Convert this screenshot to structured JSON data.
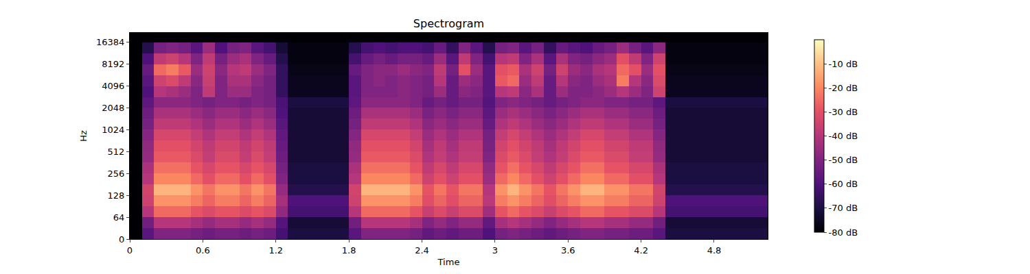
{
  "chart_data": {
    "type": "heatmap",
    "title": "Spectrogram",
    "xlabel": "Time",
    "ylabel": "Hz",
    "xlim": [
      0,
      5.24
    ],
    "ylim": [
      0,
      22050
    ],
    "xticks": [
      0,
      0.6,
      1.2,
      1.8,
      2.4,
      3,
      3.6,
      4.2,
      4.8
    ],
    "yticks": [
      0,
      64,
      128,
      256,
      512,
      1024,
      2048,
      4096,
      8192,
      16384
    ],
    "x_edges": [
      0,
      0.1,
      0.2,
      0.3,
      0.4,
      0.5,
      0.6,
      0.7,
      0.8,
      0.9,
      1.0,
      1.1,
      1.2,
      1.3,
      1.4,
      1.5,
      1.6,
      1.7,
      1.8,
      1.9,
      2.0,
      2.1,
      2.2,
      2.3,
      2.4,
      2.5,
      2.6,
      2.7,
      2.8,
      2.9,
      3.0,
      3.1,
      3.2,
      3.3,
      3.4,
      3.5,
      3.6,
      3.7,
      3.8,
      3.9,
      4.0,
      4.1,
      4.2,
      4.3,
      4.4,
      4.5,
      4.6,
      4.7,
      4.8,
      4.9,
      5.0,
      5.1,
      5.2,
      5.24
    ],
    "y_edges": [
      0,
      32,
      64,
      90.5,
      128,
      181,
      256,
      362,
      512,
      724,
      1024,
      1448,
      2048,
      2896,
      4096,
      5793,
      8192,
      11585,
      16384,
      22050
    ],
    "z": [
      [
        -80,
        -58,
        -50,
        -50,
        -50,
        -52,
        -54,
        -52,
        -52,
        -54,
        -52,
        -54,
        -62,
        -70,
        -70,
        -70,
        -70,
        -70,
        -58,
        -50,
        -50,
        -50,
        -50,
        -52,
        -56,
        -54,
        -56,
        -54,
        -54,
        -60,
        -52,
        -50,
        -52,
        -54,
        -56,
        -54,
        -52,
        -50,
        -50,
        -52,
        -52,
        -54,
        -54,
        -58,
        -70,
        -70,
        -70,
        -70,
        -70,
        -70,
        -70,
        -70,
        -70
      ],
      [
        -80,
        -53,
        -40,
        -40,
        -40,
        -43,
        -46,
        -43,
        -43,
        -46,
        -43,
        -46,
        -59,
        -72,
        -72,
        -72,
        -72,
        -72,
        -53,
        -40,
        -40,
        -40,
        -40,
        -43,
        -50,
        -46,
        -50,
        -46,
        -46,
        -56,
        -43,
        -40,
        -43,
        -46,
        -50,
        -46,
        -43,
        -40,
        -40,
        -43,
        -43,
        -46,
        -46,
        -53,
        -72,
        -72,
        -72,
        -72,
        -72,
        -72,
        -72,
        -72,
        -72
      ],
      [
        -80,
        -40,
        -25,
        -25,
        -25,
        -29,
        -32,
        -29,
        -29,
        -32,
        -29,
        -32,
        -47,
        -62,
        -62,
        -62,
        -62,
        -62,
        -40,
        -25,
        -25,
        -25,
        -25,
        -29,
        -36,
        -32,
        -36,
        -32,
        -32,
        -44,
        -29,
        -25,
        -29,
        -32,
        -36,
        -32,
        -29,
        -25,
        -25,
        -29,
        -29,
        -32,
        -32,
        -40,
        -62,
        -62,
        -62,
        -62,
        -62,
        -62,
        -62,
        -62,
        -62
      ],
      [
        -80,
        -35,
        -18,
        -18,
        -18,
        -22,
        -26,
        -22,
        -22,
        -26,
        -22,
        -26,
        -43,
        -60,
        -60,
        -60,
        -60,
        -60,
        -35,
        -18,
        -18,
        -18,
        -18,
        -22,
        -31,
        -26,
        -31,
        -26,
        -26,
        -39,
        -22,
        -18,
        -22,
        -26,
        -31,
        -26,
        -22,
        -18,
        -18,
        -22,
        -22,
        -26,
        -26,
        -35,
        -60,
        -60,
        -60,
        -60,
        -60,
        -60,
        -60,
        -60,
        -60
      ],
      [
        -80,
        -34,
        -12,
        -12,
        -12,
        -18,
        -23,
        -18,
        -18,
        -23,
        -18,
        -23,
        -46,
        -68,
        -68,
        -68,
        -68,
        -68,
        -34,
        -12,
        -12,
        -12,
        -12,
        -18,
        -29,
        -23,
        -29,
        -23,
        -23,
        -40,
        -18,
        -12,
        -18,
        -23,
        -29,
        -23,
        -18,
        -12,
        -12,
        -18,
        -18,
        -23,
        -23,
        -34,
        -68,
        -68,
        -68,
        -68,
        -68,
        -68,
        -68,
        -68,
        -68
      ],
      [
        -80,
        -40,
        -20,
        -20,
        -20,
        -25,
        -30,
        -25,
        -25,
        -30,
        -25,
        -30,
        -50,
        -70,
        -70,
        -70,
        -70,
        -70,
        -40,
        -20,
        -20,
        -20,
        -20,
        -25,
        -35,
        -30,
        -35,
        -30,
        -30,
        -45,
        -25,
        -20,
        -25,
        -30,
        -35,
        -30,
        -25,
        -20,
        -20,
        -25,
        -25,
        -30,
        -30,
        -40,
        -70,
        -70,
        -70,
        -70,
        -70,
        -70,
        -70,
        -70,
        -70
      ],
      [
        -80,
        -42,
        -24,
        -24,
        -24,
        -29,
        -33,
        -29,
        -29,
        -33,
        -29,
        -33,
        -52,
        -70,
        -70,
        -70,
        -70,
        -70,
        -42,
        -24,
        -24,
        -24,
        -24,
        -29,
        -38,
        -33,
        -38,
        -33,
        -33,
        -47,
        -29,
        -24,
        -29,
        -33,
        -38,
        -33,
        -29,
        -24,
        -24,
        -29,
        -29,
        -33,
        -33,
        -42,
        -70,
        -70,
        -70,
        -70,
        -70,
        -70,
        -70,
        -70,
        -70
      ],
      [
        -80,
        -46,
        -28,
        -28,
        -28,
        -32,
        -37,
        -32,
        -32,
        -37,
        -32,
        -37,
        -54,
        -72,
        -72,
        -72,
        -72,
        -72,
        -46,
        -28,
        -28,
        -28,
        -28,
        -32,
        -41,
        -37,
        -41,
        -37,
        -37,
        -50,
        -32,
        -28,
        -32,
        -37,
        -41,
        -37,
        -32,
        -28,
        -28,
        -32,
        -32,
        -37,
        -37,
        -46,
        -72,
        -72,
        -72,
        -72,
        -72,
        -72,
        -72,
        -72,
        -72
      ],
      [
        -80,
        -47,
        -30,
        -30,
        -30,
        -34,
        -38,
        -34,
        -34,
        -38,
        -34,
        -38,
        -55,
        -72,
        -72,
        -72,
        -72,
        -72,
        -47,
        -30,
        -30,
        -30,
        -30,
        -34,
        -43,
        -38,
        -43,
        -38,
        -38,
        -51,
        -34,
        -30,
        -34,
        -38,
        -43,
        -38,
        -34,
        -30,
        -30,
        -34,
        -34,
        -38,
        -38,
        -47,
        -72,
        -72,
        -72,
        -72,
        -72,
        -72,
        -72,
        -72,
        -72
      ],
      [
        -80,
        -49,
        -33,
        -33,
        -33,
        -37,
        -41,
        -37,
        -37,
        -41,
        -37,
        -41,
        -56,
        -72,
        -72,
        -72,
        -72,
        -72,
        -49,
        -33,
        -33,
        -33,
        -33,
        -37,
        -45,
        -41,
        -45,
        -41,
        -41,
        -52,
        -37,
        -33,
        -37,
        -41,
        -45,
        -41,
        -37,
        -33,
        -33,
        -37,
        -37,
        -41,
        -41,
        -49,
        -72,
        -72,
        -72,
        -72,
        -72,
        -72,
        -72,
        -72,
        -72
      ],
      [
        -80,
        -52,
        -38,
        -38,
        -38,
        -41,
        -45,
        -41,
        -41,
        -45,
        -41,
        -45,
        -58,
        -72,
        -72,
        -72,
        -72,
        -72,
        -52,
        -38,
        -38,
        -38,
        -38,
        -41,
        -48,
        -45,
        -48,
        -45,
        -45,
        -55,
        -41,
        -38,
        -41,
        -45,
        -48,
        -45,
        -41,
        -38,
        -38,
        -41,
        -41,
        -45,
        -45,
        -52,
        -72,
        -72,
        -72,
        -72,
        -72,
        -72,
        -72,
        -72,
        -72
      ],
      [
        -80,
        -54,
        -42,
        -42,
        -42,
        -45,
        -48,
        -45,
        -45,
        -48,
        -45,
        -48,
        -60,
        -72,
        -72,
        -72,
        -72,
        -72,
        -54,
        -42,
        -42,
        -42,
        -42,
        -45,
        -51,
        -48,
        -51,
        -48,
        -48,
        -57,
        -45,
        -42,
        -45,
        -48,
        -51,
        -48,
        -45,
        -42,
        -42,
        -45,
        -45,
        -48,
        -48,
        -54,
        -72,
        -72,
        -72,
        -72,
        -72,
        -72,
        -72,
        -72,
        -72
      ],
      [
        -80,
        -57,
        -48,
        -48,
        -48,
        -50,
        -52,
        -50,
        -50,
        -52,
        -50,
        -52,
        -61,
        -70,
        -70,
        -70,
        -70,
        -70,
        -57,
        -48,
        -48,
        -48,
        -48,
        -50,
        -55,
        -52,
        -55,
        -52,
        -52,
        -59,
        -50,
        -48,
        -50,
        -52,
        -55,
        -52,
        -50,
        -48,
        -48,
        -50,
        -50,
        -52,
        -52,
        -57,
        -70,
        -70,
        -70,
        -70,
        -70,
        -70,
        -70,
        -70,
        -70
      ],
      [
        -80,
        -60,
        -40,
        -42,
        -45,
        -50,
        -38,
        -50,
        -45,
        -45,
        -50,
        -52,
        -65,
        -76,
        -76,
        -76,
        -76,
        -76,
        -58,
        -50,
        -50,
        -50,
        -48,
        -50,
        -52,
        -45,
        -55,
        -48,
        -50,
        -58,
        -40,
        -38,
        -48,
        -42,
        -55,
        -45,
        -50,
        -50,
        -48,
        -45,
        -40,
        -45,
        -50,
        -35,
        -76,
        -76,
        -76,
        -76,
        -76,
        -76,
        -76,
        -76,
        -76
      ],
      [
        -80,
        -58,
        -35,
        -32,
        -38,
        -48,
        -36,
        -50,
        -42,
        -42,
        -48,
        -52,
        -65,
        -76,
        -76,
        -76,
        -76,
        -76,
        -58,
        -50,
        -48,
        -50,
        -48,
        -50,
        -52,
        -40,
        -55,
        -45,
        -48,
        -58,
        -28,
        -25,
        -45,
        -38,
        -55,
        -40,
        -48,
        -50,
        -45,
        -42,
        -22,
        -40,
        -48,
        -32,
        -76,
        -76,
        -76,
        -76,
        -76,
        -76,
        -76,
        -76,
        -76
      ],
      [
        -80,
        -55,
        -25,
        -22,
        -28,
        -45,
        -35,
        -48,
        -40,
        -38,
        -45,
        -50,
        -65,
        -77,
        -77,
        -77,
        -77,
        -77,
        -55,
        -50,
        -48,
        -48,
        -45,
        -48,
        -50,
        -38,
        -52,
        -30,
        -45,
        -58,
        -30,
        -28,
        -42,
        -35,
        -52,
        -35,
        -45,
        -48,
        -42,
        -40,
        -25,
        -30,
        -45,
        -30,
        -77,
        -77,
        -77,
        -77,
        -77,
        -77,
        -77,
        -77,
        -77
      ],
      [
        -80,
        -60,
        -38,
        -35,
        -40,
        -50,
        -38,
        -52,
        -45,
        -42,
        -50,
        -55,
        -68,
        -78,
        -78,
        -78,
        -78,
        -78,
        -62,
        -55,
        -52,
        -55,
        -52,
        -52,
        -55,
        -45,
        -58,
        -38,
        -50,
        -62,
        -40,
        -38,
        -50,
        -42,
        -58,
        -42,
        -50,
        -52,
        -48,
        -45,
        -30,
        -38,
        -50,
        -35,
        -78,
        -78,
        -78,
        -78,
        -78,
        -78,
        -78,
        -78,
        -78
      ],
      [
        -80,
        -68,
        -52,
        -50,
        -52,
        -58,
        -45,
        -60,
        -52,
        -50,
        -58,
        -62,
        -72,
        -78,
        -78,
        -78,
        -78,
        -78,
        -68,
        -62,
        -60,
        -62,
        -60,
        -60,
        -62,
        -55,
        -65,
        -50,
        -58,
        -68,
        -52,
        -50,
        -58,
        -52,
        -65,
        -55,
        -58,
        -60,
        -55,
        -52,
        -45,
        -52,
        -58,
        -48,
        -78,
        -78,
        -78,
        -78,
        -78,
        -78,
        -78,
        -78,
        -78
      ],
      [
        -80,
        -80,
        -80,
        -80,
        -80,
        -80,
        -80,
        -80,
        -80,
        -80,
        -80,
        -80,
        -80,
        -80,
        -80,
        -80,
        -80,
        -80,
        -80,
        -80,
        -80,
        -80,
        -80,
        -80,
        -80,
        -80,
        -80,
        -80,
        -80,
        -80,
        -80,
        -80,
        -80,
        -80,
        -80,
        -80,
        -80,
        -80,
        -80,
        -80,
        -80,
        -80,
        -80,
        -80,
        -80,
        -80,
        -80,
        -80,
        -80,
        -80,
        -80,
        -80,
        -80
      ]
    ],
    "colorbar": {
      "range": [
        -80,
        0
      ],
      "ticks": [
        {
          "value": -80,
          "label": "-80 dB"
        },
        {
          "value": -70,
          "label": "-70 dB"
        },
        {
          "value": -60,
          "label": "-60 dB"
        },
        {
          "value": -50,
          "label": "-50 dB"
        },
        {
          "value": -40,
          "label": "-40 dB"
        },
        {
          "value": -30,
          "label": "-30 dB"
        },
        {
          "value": -20,
          "label": "-20 dB"
        },
        {
          "value": -10,
          "label": "-10 dB"
        }
      ]
    }
  }
}
